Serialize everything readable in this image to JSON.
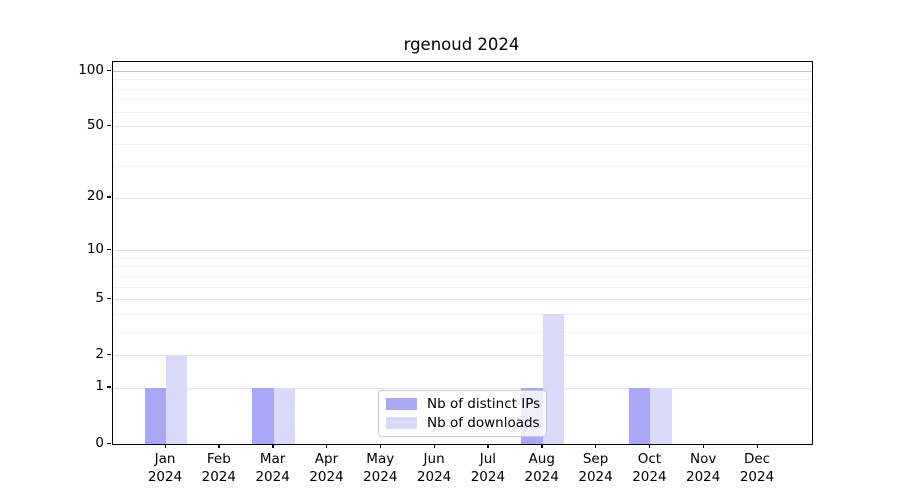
{
  "chart_data": {
    "type": "bar",
    "title": "rgenoud 2024",
    "categories": [
      "Jan",
      "Feb",
      "Mar",
      "Apr",
      "May",
      "Jun",
      "Jul",
      "Aug",
      "Sep",
      "Oct",
      "Nov",
      "Dec"
    ],
    "x_sub_label": "2024",
    "series": [
      {
        "name": "Nb of distinct IPs",
        "color": "#a8a8f6",
        "values": [
          1,
          0,
          1,
          0,
          0,
          0,
          0,
          1,
          0,
          1,
          0,
          0
        ]
      },
      {
        "name": "Nb of downloads",
        "color": "#d9d9f9",
        "values": [
          2,
          0,
          1,
          0,
          0,
          0,
          0,
          4,
          0,
          1,
          0,
          0
        ]
      }
    ],
    "y_scale": "log10(value+1)",
    "y_major_ticks": [
      0,
      1,
      2,
      5,
      10,
      20,
      50,
      100
    ],
    "y_minor_ticks": [
      3,
      4,
      6,
      7,
      8,
      9,
      30,
      40,
      60,
      70,
      80,
      90
    ],
    "ylim": [
      0,
      113
    ],
    "grid": "both",
    "legend_position": "inside-lower-center",
    "xlabel": "",
    "ylabel": ""
  }
}
